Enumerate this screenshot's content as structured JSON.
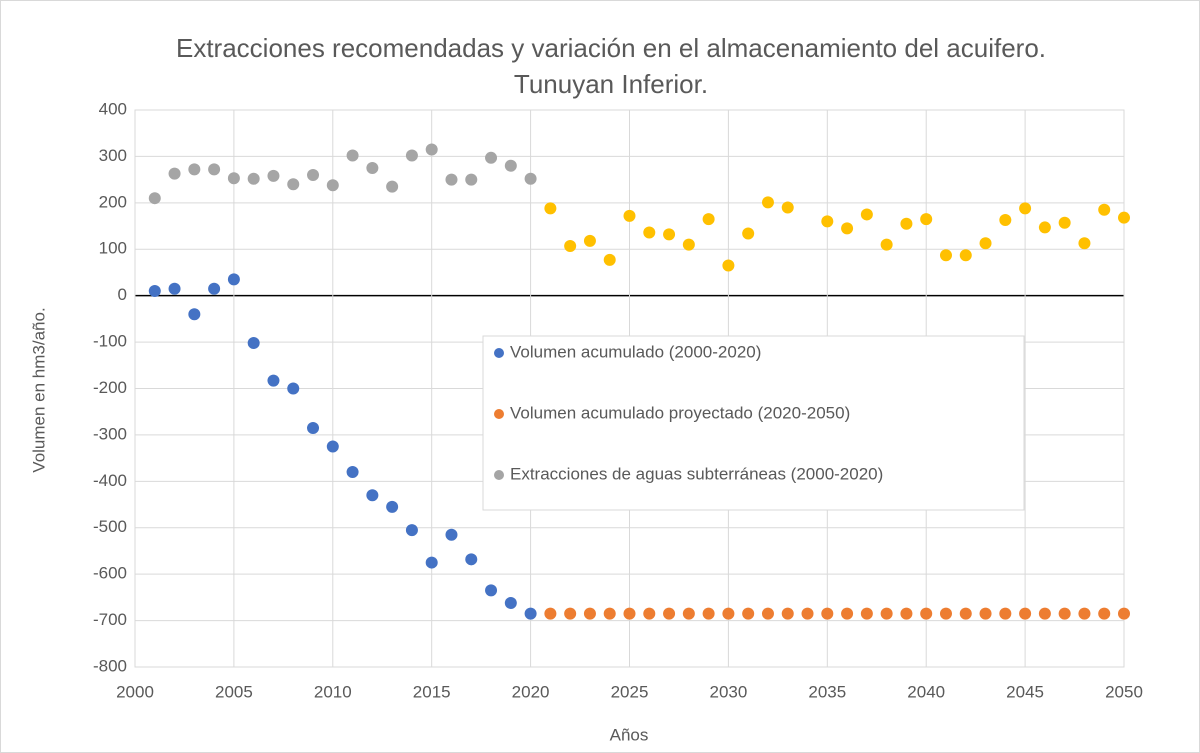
{
  "chart_data": {
    "type": "scatter",
    "title": "Extracciones recomendadas y variación en el almacenamiento del acuifero. Tunuyan Inferior.",
    "x_label": "Años",
    "y_label": "Volumen en hm3/año.",
    "xlim": [
      2000,
      2050
    ],
    "xticks": [
      2000,
      2005,
      2010,
      2015,
      2020,
      2025,
      2030,
      2035,
      2040,
      2045,
      2050
    ],
    "ylim": [
      -800,
      400
    ],
    "yticks": [
      -800,
      -700,
      -600,
      -500,
      -400,
      -300,
      -200,
      -100,
      0,
      100,
      200,
      300,
      400
    ],
    "grid": true,
    "legend": "right",
    "series": [
      {
        "name": "Volumen acumulado (2000-2020)",
        "color": "#4472c4",
        "x": [
          2001,
          2002,
          2003,
          2004,
          2005,
          2006,
          2007,
          2008,
          2009,
          2010,
          2011,
          2012,
          2013,
          2014,
          2015,
          2016,
          2017,
          2018,
          2019,
          2020
        ],
        "values": [
          10,
          15,
          -40,
          15,
          35,
          -102,
          -183,
          -200,
          -285,
          -325,
          -380,
          -430,
          -455,
          -505,
          -575,
          -515,
          -568,
          -635,
          -662,
          -685
        ]
      },
      {
        "name": "Volumen acumulado proyectado (2020-2050)",
        "color": "#ed7d31",
        "x": [
          2021,
          2022,
          2023,
          2024,
          2025,
          2026,
          2027,
          2028,
          2029,
          2030,
          2031,
          2032,
          2033,
          2034,
          2035,
          2036,
          2037,
          2038,
          2039,
          2040,
          2041,
          2042,
          2043,
          2044,
          2045,
          2046,
          2047,
          2048,
          2049,
          2050
        ],
        "values": [
          -685,
          -685,
          -685,
          -685,
          -685,
          -685,
          -685,
          -685,
          -685,
          -685,
          -685,
          -685,
          -685,
          -685,
          -685,
          -685,
          -685,
          -685,
          -685,
          -685,
          -685,
          -685,
          -685,
          -685,
          -685,
          -685,
          -685,
          -685,
          -685,
          -685
        ]
      },
      {
        "name": "Extracciones de aguas subterráneas (2000-2020)",
        "color": "#a5a5a5",
        "x": [
          2001,
          2002,
          2003,
          2004,
          2005,
          2006,
          2007,
          2008,
          2009,
          2010,
          2011,
          2012,
          2013,
          2014,
          2015,
          2016,
          2017,
          2018,
          2019,
          2020
        ],
        "values": [
          210,
          263,
          272,
          272,
          253,
          252,
          258,
          240,
          260,
          238,
          302,
          275,
          235,
          302,
          315,
          250,
          250,
          297,
          280,
          252
        ]
      },
      {
        "color": "#ffc000",
        "x": [
          2021,
          2022,
          2023,
          2024,
          2025,
          2026,
          2027,
          2028,
          2029,
          2030,
          2031,
          2032,
          2033,
          2035,
          2036,
          2037,
          2038,
          2039,
          2040,
          2041,
          2042,
          2043,
          2044,
          2045,
          2046,
          2047,
          2048,
          2049,
          2050
        ],
        "values": [
          188,
          107,
          118,
          77,
          172,
          136,
          132,
          110,
          165,
          65,
          134,
          201,
          190,
          160,
          145,
          175,
          110,
          155,
          165,
          87,
          87,
          113,
          163,
          188,
          147,
          157,
          113,
          185,
          168
        ]
      }
    ]
  }
}
